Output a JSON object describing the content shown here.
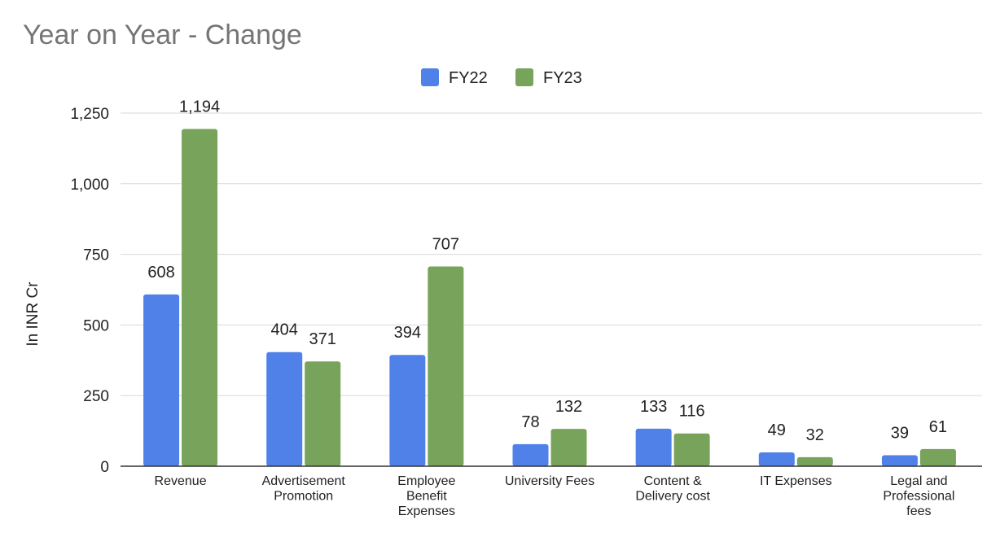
{
  "chart_data": {
    "type": "bar",
    "title": "Year on Year - Change",
    "ylabel": "In INR Cr",
    "xlabel": "",
    "ylim": [
      0,
      1250
    ],
    "yticks": [
      0,
      250,
      500,
      750,
      1000,
      1250
    ],
    "ytick_labels": [
      "0",
      "250",
      "500",
      "750",
      "1,000",
      "1,250"
    ],
    "grid": true,
    "legend_position": "top-center",
    "categories": [
      [
        "Revenue"
      ],
      [
        "Advertisement",
        "Promotion"
      ],
      [
        "Employee",
        "Benefit",
        "Expenses"
      ],
      [
        "University Fees"
      ],
      [
        "Content &",
        "Delivery cost"
      ],
      [
        "IT Expenses"
      ],
      [
        "Legal and",
        "Professional",
        "fees"
      ]
    ],
    "series": [
      {
        "name": "FY22",
        "color": "#4f81e8",
        "values": [
          608,
          404,
          394,
          78,
          133,
          49,
          39
        ],
        "labels": [
          "608",
          "404",
          "394",
          "78",
          "133",
          "49",
          "39"
        ]
      },
      {
        "name": "FY23",
        "color": "#77a45a",
        "values": [
          1194,
          371,
          707,
          132,
          116,
          32,
          61
        ],
        "labels": [
          "1,194",
          "371",
          "707",
          "132",
          "116",
          "32",
          "61"
        ]
      }
    ]
  }
}
